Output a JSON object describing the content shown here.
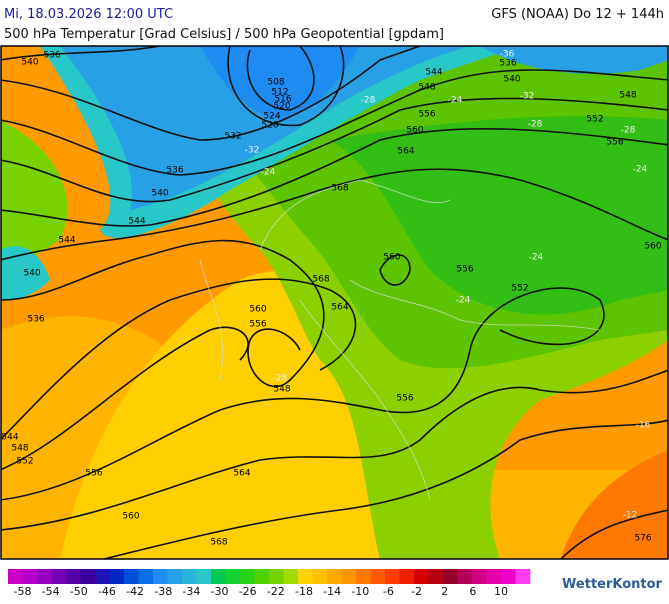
{
  "header": {
    "left": "Mi, 18.03.2026 12:00 UTC",
    "right": "GFS (NOAA) Do 12 + 144h",
    "subtitle": "500 hPa Temperatur [Grad Celsius] / 500 hPa Geopotential [gpdam]"
  },
  "map": {
    "contour_labels": [
      "536",
      "540",
      "508",
      "512",
      "516",
      "520",
      "524",
      "528",
      "532",
      "536",
      "540",
      "544",
      "544",
      "540",
      "536",
      "544",
      "548",
      "552",
      "556",
      "560",
      "564",
      "568",
      "568",
      "568",
      "564",
      "560",
      "556",
      "548",
      "560",
      "556",
      "556",
      "552",
      "560",
      "564",
      "556",
      "548",
      "544",
      "536",
      "540",
      "548",
      "552",
      "556",
      "560",
      "576"
    ],
    "temperature_labels": [
      "-36",
      "-32",
      "-28",
      "-28",
      "-24",
      "-32",
      "-28",
      "-24",
      "-24",
      "-24",
      "-24",
      "-28",
      "-12",
      "-16"
    ]
  },
  "colorbar": {
    "labels": [
      -58,
      -54,
      -50,
      -46,
      -42,
      -38,
      -34,
      -30,
      -26,
      -22,
      -18,
      -14,
      -10,
      -6,
      -2,
      2,
      6,
      10
    ],
    "colors": [
      "#c800c8",
      "#b400c8",
      "#9600c0",
      "#7800b4",
      "#5a00aa",
      "#3c00a0",
      "#1e14b4",
      "#0028c8",
      "#0050dc",
      "#0a6ee6",
      "#1e8cf0",
      "#28a0e6",
      "#2ab4dc",
      "#28c8c8",
      "#00c850",
      "#14d232",
      "#28d214",
      "#50d200",
      "#78d200",
      "#a0dc00",
      "#ffd200",
      "#ffc000",
      "#ffaa00",
      "#ff9600",
      "#ff7800",
      "#ff5a00",
      "#ff3c00",
      "#f01e00",
      "#d20000",
      "#b40014",
      "#960028",
      "#b4005a",
      "#d20082",
      "#e600aa",
      "#f000c8",
      "#ff3cf0"
    ]
  },
  "brand": "WetterKontor"
}
